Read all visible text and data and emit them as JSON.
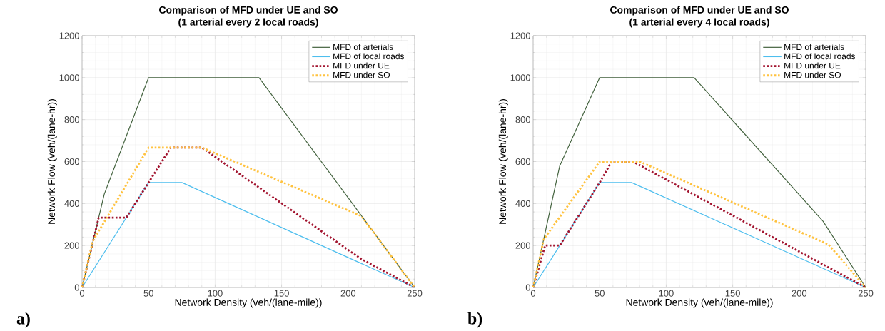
{
  "chart_data": [
    {
      "type": "line",
      "title": "Comparison of MFD under UE and SO",
      "subtitle": "(1 arterial every 2 local roads)",
      "xlabel": "Network Density (veh/(lane-mile))",
      "ylabel": "Network Flow (veh/(lane-hr))",
      "annotations": [
        "a)"
      ],
      "xlim": [
        0,
        250
      ],
      "ylim": [
        0,
        1200
      ],
      "xticks": [
        0,
        50,
        100,
        150,
        200,
        250
      ],
      "yticks": [
        0,
        200,
        400,
        600,
        800,
        1000,
        1200
      ],
      "grid": true,
      "legend": "top right",
      "series": [
        {
          "name": "MFD of arterials",
          "color": "#44633f",
          "line_style": "solid",
          "x": [
            0,
            16.7,
            50,
            133,
            250
          ],
          "values": [
            0,
            445,
            1000,
            1000,
            0
          ]
        },
        {
          "name": "MFD of local roads",
          "color": "#4dbeee",
          "line_style": "solid",
          "x": [
            0,
            50,
            75,
            250
          ],
          "values": [
            0,
            500,
            500,
            0
          ]
        },
        {
          "name": "MFD under UE",
          "color": "#a2142f",
          "line_style": "dotted",
          "x": [
            0,
            12.5,
            33.3,
            50,
            66.7,
            90,
            210,
            250
          ],
          "values": [
            0,
            333,
            333,
            500,
            667,
            667,
            135,
            0
          ]
        },
        {
          "name": "MFD under SO",
          "color": "#ffc23e",
          "line_style": "dotted",
          "x": [
            0,
            8,
            50,
            90,
            210,
            250
          ],
          "values": [
            0,
            220,
            667,
            667,
            340,
            0
          ]
        }
      ]
    },
    {
      "type": "line",
      "title": "Comparison of MFD under UE and SO",
      "subtitle": "(1 arterial every 4 local roads)",
      "xlabel": "Network Density (veh/(lane-mile))",
      "ylabel": "Network Flow (veh/(lane-hr))",
      "annotations": [
        "b)"
      ],
      "xlim": [
        0,
        250
      ],
      "ylim": [
        0,
        1200
      ],
      "xticks": [
        0,
        50,
        100,
        150,
        200,
        250
      ],
      "yticks": [
        0,
        200,
        400,
        600,
        800,
        1000,
        1200
      ],
      "grid": true,
      "legend": "top right",
      "series": [
        {
          "name": "MFD of arterials",
          "color": "#44633f",
          "line_style": "solid",
          "x": [
            0,
            20,
            50,
            121,
            218,
            250
          ],
          "values": [
            0,
            580,
            1000,
            1000,
            315,
            0
          ]
        },
        {
          "name": "MFD of local roads",
          "color": "#4dbeee",
          "line_style": "solid",
          "x": [
            0,
            50,
            74,
            250
          ],
          "values": [
            0,
            500,
            500,
            0
          ]
        },
        {
          "name": "MFD under UE",
          "color": "#a2142f",
          "line_style": "dotted",
          "x": [
            0,
            9,
            20,
            50,
            59,
            75,
            250
          ],
          "values": [
            0,
            200,
            200,
            500,
            600,
            600,
            0
          ]
        },
        {
          "name": "MFD under SO",
          "color": "#ffc23e",
          "line_style": "dotted",
          "x": [
            0,
            8,
            50,
            80,
            222,
            250
          ],
          "values": [
            0,
            230,
            600,
            600,
            205,
            0
          ]
        }
      ]
    }
  ]
}
